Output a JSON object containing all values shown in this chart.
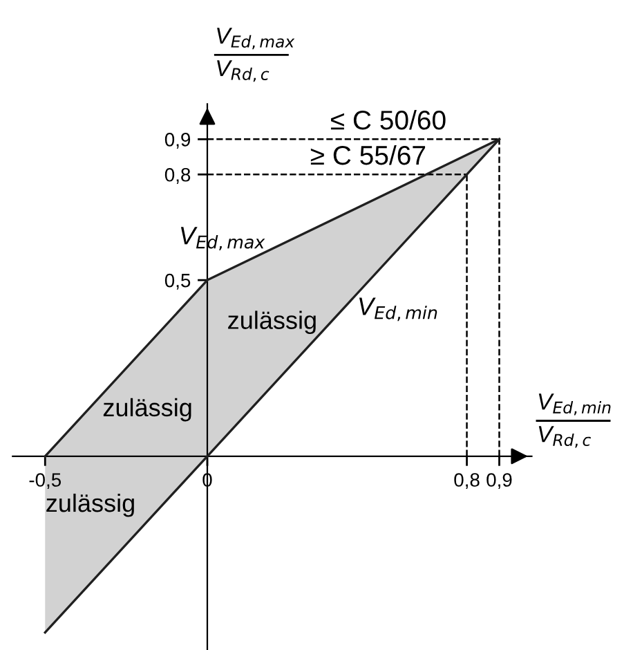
{
  "chart_data": {
    "type": "line",
    "xlabel": "V$_{Ed,min}$\nV$_{Rd,c}$",
    "ylabel": "V$_{Ed,max}$\nV$_{Rd,c}$",
    "series": [
      {
        "name": "V$_{Ed,max}$",
        "color": "#202020",
        "x": [
          -0.5,
          0,
          0.9
        ],
        "values": [
          0,
          0.5,
          0.9
        ],
        "lower": [
          -0.5,
          0,
          0.9
        ],
        "upper": [
          0,
          0.5,
          0.9
        ]
      },
      {
        "name": "V$_{Ed,min}$",
        "color": "#202020",
        "x": [
          -0.5,
          0,
          0.9
        ],
        "values": [
          -0.5,
          0,
          0.9
        ]
      }
    ],
    "xlim": [
      -0.6,
      1.0
    ],
    "ylim": [
      -0.55,
      1.0
    ],
    "xticks": [
      {
        "value": -0.5,
        "label": "-0,5"
      },
      {
        "value": 0,
        "label": "0"
      },
      {
        "value": 0.8,
        "label": "0,8"
      },
      {
        "value": 0.9,
        "label": "0,9"
      }
    ],
    "yticks": [
      {
        "value": 0.5,
        "label": "0,5"
      },
      {
        "value": 0.8,
        "label": "0,8"
      },
      {
        "value": 0.9,
        "label": "0,9"
      }
    ],
    "ref_lines": [
      {
        "axis": "y",
        "value": 0.9,
        "label": "≤ C 50/60",
        "color": "#000000",
        "line_style": "dashed"
      },
      {
        "axis": "y",
        "value": 0.8,
        "label": "≥ C 55/67",
        "color": "#000000",
        "line_style": "dashed"
      },
      {
        "axis": "x",
        "value": 0.8,
        "label": null,
        "color": "#000000",
        "line_style": "dashed"
      },
      {
        "axis": "x",
        "value": 0.9,
        "label": null,
        "color": "#000000",
        "line_style": "dashed"
      }
    ],
    "annotations": [
      "zulässig",
      "zulässig",
      "zulässig"
    ],
    "grid": false,
    "legend": false,
    "marker": "none",
    "line_style": "solid"
  }
}
